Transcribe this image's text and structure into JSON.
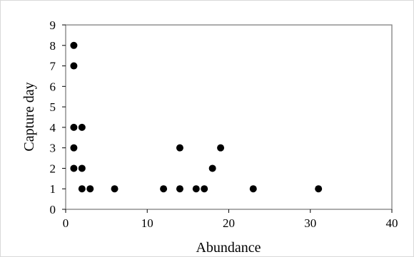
{
  "chart_data": {
    "type": "scatter",
    "xlabel": "Abundance",
    "ylabel": "Capture day",
    "xlim": [
      0,
      40
    ],
    "ylim": [
      0,
      9
    ],
    "x_ticks": [
      0,
      10,
      20,
      30,
      40
    ],
    "y_ticks": [
      0,
      1,
      2,
      3,
      4,
      5,
      6,
      7,
      8,
      9
    ],
    "x_tick_labels": [
      "0",
      "10",
      "20",
      "30",
      "40"
    ],
    "y_tick_labels": [
      "0",
      "1",
      "2",
      "3",
      "4",
      "5",
      "6",
      "7",
      "8",
      "9"
    ],
    "grid": false,
    "marker_color": "#000000",
    "points": [
      {
        "x": 1,
        "y": 8
      },
      {
        "x": 1,
        "y": 7
      },
      {
        "x": 1,
        "y": 4
      },
      {
        "x": 2,
        "y": 4
      },
      {
        "x": 1,
        "y": 3
      },
      {
        "x": 1,
        "y": 2
      },
      {
        "x": 2,
        "y": 2
      },
      {
        "x": 2,
        "y": 1
      },
      {
        "x": 3,
        "y": 1
      },
      {
        "x": 6,
        "y": 1
      },
      {
        "x": 12,
        "y": 1
      },
      {
        "x": 14,
        "y": 1
      },
      {
        "x": 14,
        "y": 3
      },
      {
        "x": 16,
        "y": 1
      },
      {
        "x": 17,
        "y": 1
      },
      {
        "x": 18,
        "y": 2
      },
      {
        "x": 19,
        "y": 3
      },
      {
        "x": 23,
        "y": 1
      },
      {
        "x": 31,
        "y": 1
      }
    ]
  }
}
